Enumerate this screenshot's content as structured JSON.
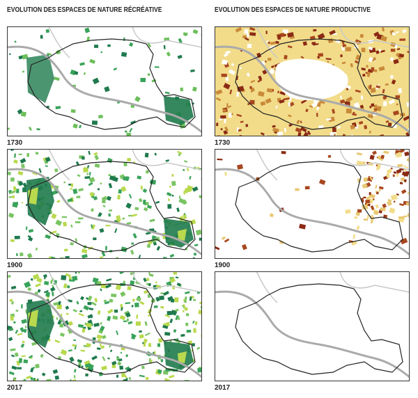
{
  "columns": [
    {
      "title": "EVOLUTION DES ESPACES DE NATURE RÉCRÉATIVE",
      "panels": [
        {
          "year": "1730"
        },
        {
          "year": "1900"
        },
        {
          "year": "2017"
        }
      ]
    },
    {
      "title": "EVOLUTION DES ESPACES DE NATURE PRODUCTIVE",
      "panels": [
        {
          "year": "1730"
        },
        {
          "year": "1900"
        },
        {
          "year": "2017"
        }
      ]
    }
  ]
}
